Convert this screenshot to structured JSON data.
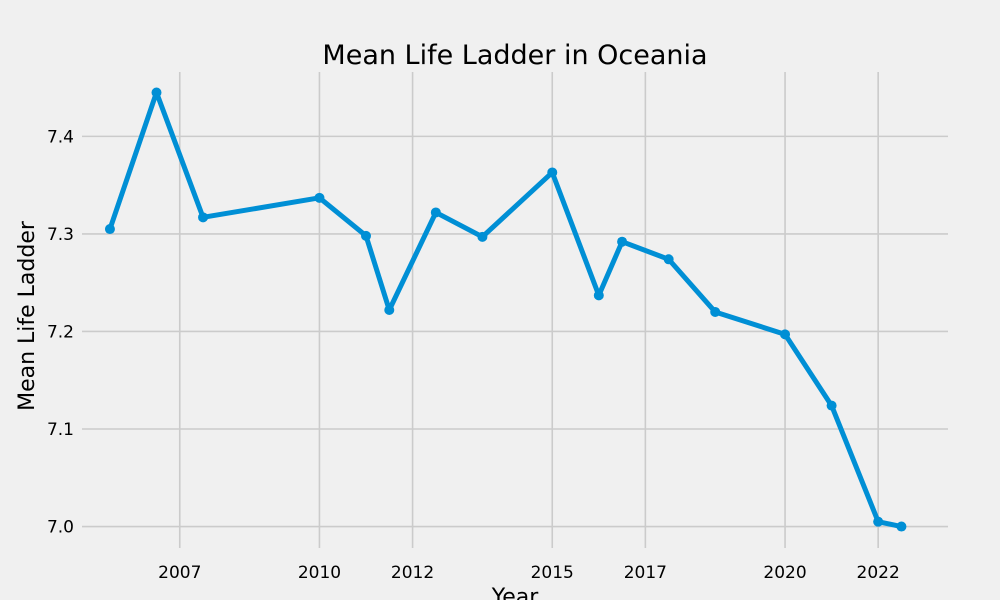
{
  "chart_data": {
    "type": "line",
    "title": "Mean Life Ladder in Oceania",
    "xlabel": "Year",
    "ylabel": "Mean Life Ladder",
    "xlim": [
      2004.9,
      2023.5
    ],
    "ylim": [
      6.978,
      7.466
    ],
    "x_ticks": [
      2007,
      2010,
      2012,
      2015,
      2017,
      2020,
      2022
    ],
    "x_tick_labels": [
      "2007",
      "2010",
      "2012",
      "2015",
      "2017",
      "2020",
      "2022"
    ],
    "y_ticks": [
      7.0,
      7.1,
      7.2,
      7.3,
      7.4
    ],
    "y_tick_labels": [
      "7.0",
      "7.1",
      "7.2",
      "7.3",
      "7.4"
    ],
    "grid": true,
    "color": "#008fd5",
    "series": [
      {
        "x": [
          2005.5,
          2006.5,
          2007.5,
          2010.0,
          2011.0,
          2011.5,
          2012.5,
          2013.5,
          2015.0,
          2016.0,
          2016.5,
          2017.5,
          2018.5,
          2020.0,
          2021.0,
          2022.0,
          2022.5
        ],
        "values": [
          7.305,
          7.445,
          7.317,
          7.337,
          7.298,
          7.222,
          7.322,
          7.297,
          7.363,
          7.237,
          7.292,
          7.274,
          7.22,
          7.197,
          7.124,
          7.005,
          7.0
        ]
      }
    ]
  }
}
